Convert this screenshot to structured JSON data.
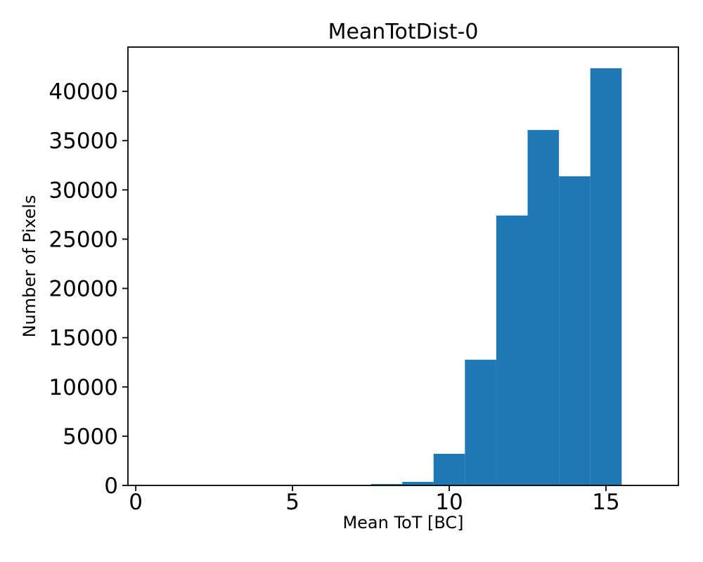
{
  "chart_data": {
    "type": "bar",
    "subtype": "histogram",
    "title": "MeanTotDist-0",
    "xlabel": "Mean ToT [BC]",
    "ylabel": "Number of Pixels",
    "bar_color": "#1f77b4",
    "background_color": "#ffffff",
    "spine_color": "#000000",
    "grid": false,
    "legend": null,
    "bin_edges": [
      0.5,
      1.5,
      2.5,
      3.5,
      4.5,
      5.5,
      6.5,
      7.5,
      8.5,
      9.5,
      10.5,
      11.5,
      12.5,
      13.5,
      14.5,
      15.5,
      16.5
    ],
    "counts": [
      0,
      0,
      0,
      0,
      0,
      0,
      0,
      140,
      360,
      3210,
      12760,
      27400,
      36080,
      31380,
      42350,
      0
    ],
    "xlim": [
      -0.25,
      17.31
    ],
    "ylim": [
      0,
      44500
    ],
    "xticks": [
      0,
      5,
      10,
      15
    ],
    "xtick_labels": [
      "0",
      "5",
      "10",
      "15"
    ],
    "yticks": [
      0,
      5000,
      10000,
      15000,
      20000,
      25000,
      30000,
      35000,
      40000
    ],
    "ytick_labels": [
      "0",
      "5000",
      "10000",
      "15000",
      "20000",
      "25000",
      "30000",
      "35000",
      "40000"
    ]
  }
}
